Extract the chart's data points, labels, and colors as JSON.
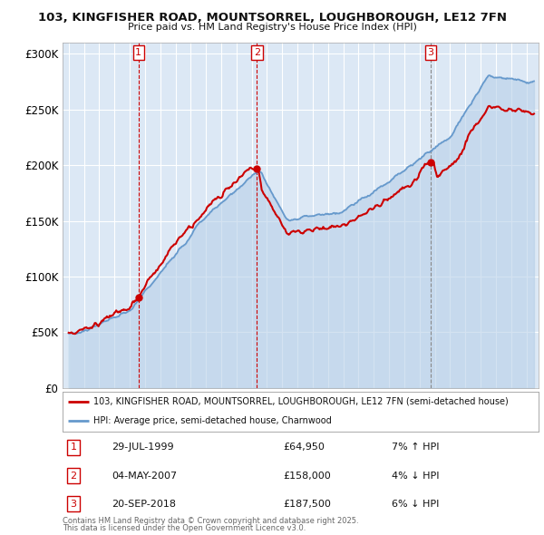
{
  "title1": "103, KINGFISHER ROAD, MOUNTSORREL, LOUGHBOROUGH, LE12 7FN",
  "title2": "Price paid vs. HM Land Registry's House Price Index (HPI)",
  "legend_line1": "103, KINGFISHER ROAD, MOUNTSORREL, LOUGHBOROUGH, LE12 7FN (semi-detached house)",
  "legend_line2": "HPI: Average price, semi-detached house, Charnwood",
  "transactions": [
    {
      "num": 1,
      "date": "29-JUL-1999",
      "price": "£64,950",
      "pct": "7% ↑ HPI",
      "year": 1999.58,
      "value": 64950
    },
    {
      "num": 2,
      "date": "04-MAY-2007",
      "price": "£158,000",
      "pct": "4% ↓ HPI",
      "year": 2007.34,
      "value": 158000
    },
    {
      "num": 3,
      "date": "20-SEP-2018",
      "price": "£187,500",
      "pct": "6% ↓ HPI",
      "year": 2018.72,
      "value": 187500
    }
  ],
  "footer1": "Contains HM Land Registry data © Crown copyright and database right 2025.",
  "footer2": "This data is licensed under the Open Government Licence v3.0.",
  "bg_color": "#ffffff",
  "plot_bg": "#dce8f5",
  "grid_color": "#ffffff",
  "red_color": "#cc0000",
  "blue_color": "#6699cc",
  "blue_fill": "#b8d0e8",
  "ylim": [
    0,
    310000
  ],
  "yticks": [
    0,
    50000,
    100000,
    150000,
    200000,
    250000,
    300000
  ],
  "xlim_start": 1994.6,
  "xlim_end": 2025.8
}
